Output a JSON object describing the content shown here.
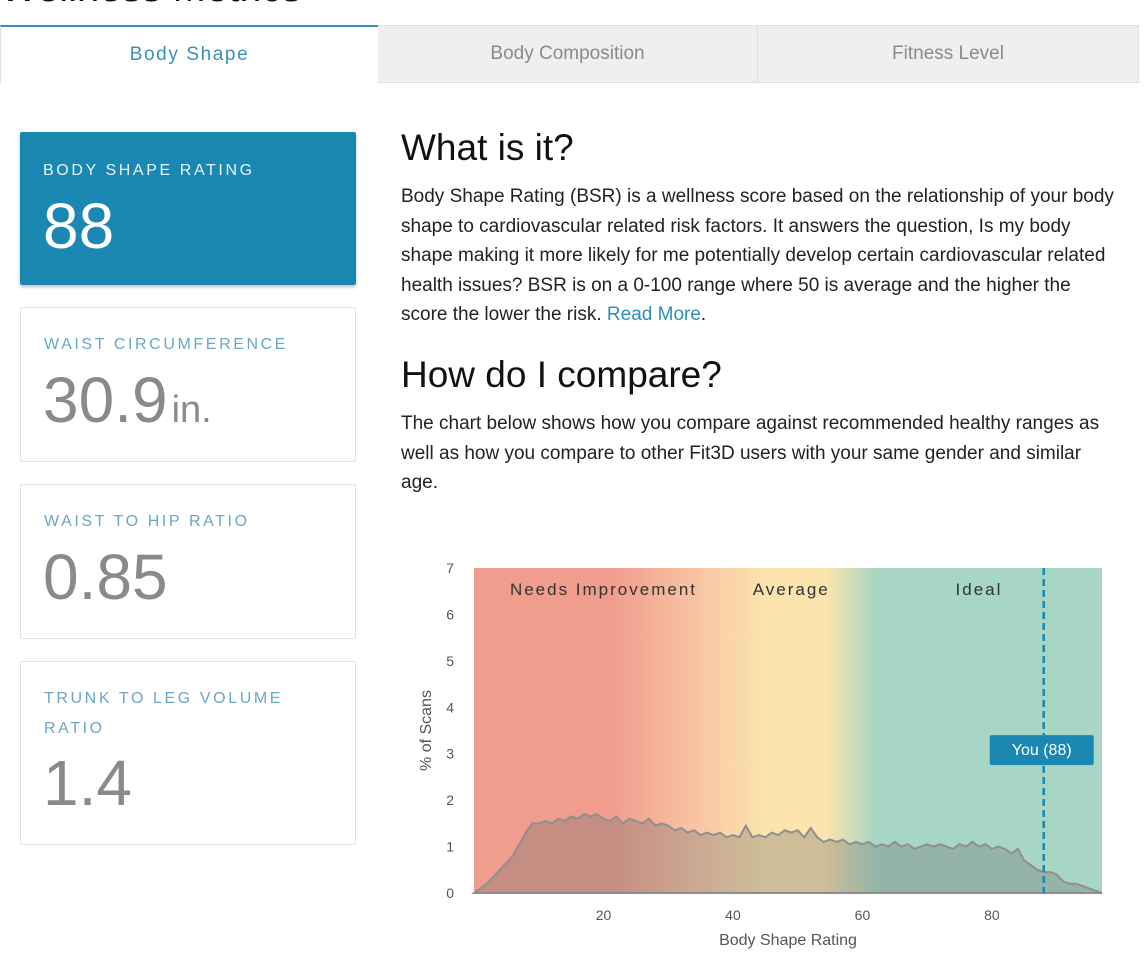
{
  "page_heading": "Wellness Metrics",
  "tabs": [
    {
      "label": "Body Shape",
      "active": true
    },
    {
      "label": "Body Composition",
      "active": false
    },
    {
      "label": "Fitness Level",
      "active": false
    }
  ],
  "cards": {
    "bsr": {
      "label": "BODY SHAPE RATING",
      "value": "88"
    },
    "waist": {
      "label": "WAIST CIRCUMFERENCE",
      "value": "30.9",
      "unit": "in."
    },
    "whr": {
      "label": "WAIST TO HIP RATIO",
      "value": "0.85"
    },
    "tlv": {
      "label": "TRUNK TO LEG VOLUME RATIO",
      "value": "1.4"
    }
  },
  "what": {
    "heading": "What is it?",
    "text": "Body Shape Rating (BSR) is a wellness score based on the relationship of your body shape to cardiovascular related risk factors. It answers the question, Is my body shape making it more likely for me potentially develop certain cardiovascular related health issues? BSR is on a 0-100 range where 50 is average and the higher the score the lower the risk. ",
    "link": "Read More",
    "after_link": "."
  },
  "compare": {
    "heading": "How do I compare?",
    "text": "The chart below shows how you compare against recommended healthy ranges as well as how you compare to other Fit3D users with your same gender and similar age."
  },
  "colors": {
    "accent": "#1a88b2",
    "needs_improvement": "#f19d8e",
    "average": "#fbe4ad",
    "ideal": "#a8d6c4"
  },
  "chart_data": {
    "type": "area",
    "xlabel": "Body Shape Rating",
    "ylabel": "% of Scans",
    "xlim": [
      0,
      97
    ],
    "ylim": [
      0,
      7
    ],
    "x_ticks": [
      20,
      40,
      60,
      80
    ],
    "y_ticks": [
      0,
      1,
      2,
      3,
      4,
      5,
      6,
      7
    ],
    "zones": [
      {
        "label": "Needs Improvement",
        "from": 0,
        "to": 35
      },
      {
        "label": "Average",
        "from": 35,
        "to": 55
      },
      {
        "label": "Ideal",
        "from": 55,
        "to": 97
      }
    ],
    "marker": {
      "x": 88,
      "label": "You (88)"
    },
    "x": [
      0,
      2,
      4,
      6,
      8,
      9,
      10,
      11,
      12,
      13,
      14,
      15,
      16,
      17,
      18,
      19,
      20,
      21,
      22,
      23,
      24,
      25,
      26,
      27,
      28,
      29,
      30,
      31,
      32,
      33,
      34,
      35,
      36,
      37,
      38,
      39,
      40,
      41,
      42,
      43,
      44,
      45,
      46,
      47,
      48,
      49,
      50,
      51,
      52,
      53,
      54,
      55,
      56,
      57,
      58,
      59,
      60,
      61,
      62,
      63,
      64,
      65,
      66,
      67,
      68,
      69,
      70,
      71,
      72,
      73,
      74,
      75,
      76,
      77,
      78,
      79,
      80,
      81,
      82,
      83,
      84,
      85,
      86,
      87,
      88,
      89,
      90,
      91,
      92,
      93,
      94,
      95,
      96,
      97
    ],
    "values": [
      0,
      0.2,
      0.5,
      0.8,
      1.3,
      1.5,
      1.5,
      1.55,
      1.5,
      1.6,
      1.55,
      1.65,
      1.6,
      1.7,
      1.65,
      1.7,
      1.6,
      1.55,
      1.65,
      1.5,
      1.6,
      1.55,
      1.5,
      1.6,
      1.45,
      1.5,
      1.45,
      1.35,
      1.4,
      1.3,
      1.35,
      1.25,
      1.3,
      1.25,
      1.3,
      1.2,
      1.25,
      1.2,
      1.45,
      1.2,
      1.25,
      1.2,
      1.3,
      1.25,
      1.35,
      1.3,
      1.35,
      1.2,
      1.4,
      1.2,
      1.1,
      1.15,
      1.1,
      1.15,
      1.05,
      1.1,
      1.05,
      1.1,
      1.0,
      1.05,
      1.0,
      1.1,
      1.0,
      1.05,
      0.95,
      1.0,
      1.05,
      1.0,
      1.05,
      1.0,
      0.95,
      1.05,
      1.0,
      1.1,
      1.0,
      1.05,
      0.95,
      1.0,
      0.95,
      0.85,
      0.95,
      0.7,
      0.6,
      0.5,
      0.45,
      0.45,
      0.4,
      0.25,
      0.2,
      0.2,
      0.15,
      0.1,
      0.05,
      0
    ]
  }
}
